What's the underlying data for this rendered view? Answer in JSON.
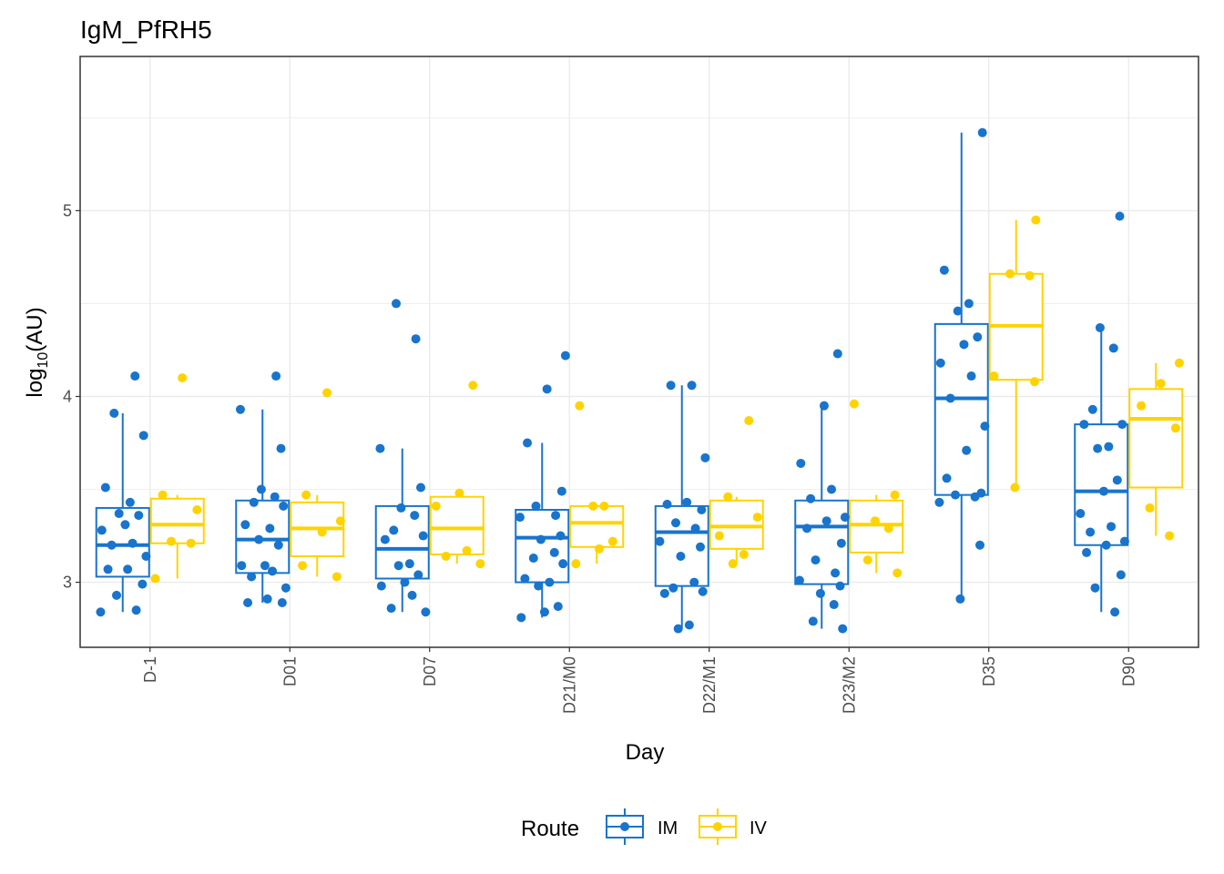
{
  "chart_data": {
    "type": "box",
    "title": "IgM_PfRH5",
    "xlabel": "Day",
    "ylabel": "log10(AU)",
    "ylabel_base": "log",
    "ylabel_sub": "10",
    "ylabel_rest": "(AU)",
    "ylim": [
      2.65,
      5.83
    ],
    "yticks": [
      3,
      4,
      5
    ],
    "grid": true,
    "legend_position": "bottom",
    "legend_title": "Route",
    "categories": [
      "D-1",
      "D01",
      "D07",
      "D21/M0",
      "D22/M1",
      "D23/M2",
      "D35",
      "D90"
    ],
    "series": [
      {
        "name": "IM",
        "color": "#1874CD",
        "boxes": [
          {
            "min": 2.84,
            "q1": 3.03,
            "median": 3.2,
            "q3": 3.4,
            "max": 3.91
          },
          {
            "min": 2.89,
            "q1": 3.05,
            "median": 3.23,
            "q3": 3.44,
            "max": 3.93
          },
          {
            "min": 2.84,
            "q1": 3.02,
            "median": 3.18,
            "q3": 3.41,
            "max": 3.72
          },
          {
            "min": 2.81,
            "q1": 3.0,
            "median": 3.24,
            "q3": 3.39,
            "max": 3.75
          },
          {
            "min": 2.75,
            "q1": 2.98,
            "median": 3.27,
            "q3": 3.41,
            "max": 4.06
          },
          {
            "min": 2.75,
            "q1": 2.99,
            "median": 3.3,
            "q3": 3.44,
            "max": 3.95
          },
          {
            "min": 2.91,
            "q1": 3.47,
            "median": 3.99,
            "q3": 4.39,
            "max": 5.42
          },
          {
            "min": 2.84,
            "q1": 3.2,
            "median": 3.49,
            "q3": 3.85,
            "max": 4.37
          }
        ],
        "points": [
          [
            2.84,
            2.85,
            2.93,
            2.99,
            3.07,
            3.07,
            3.14,
            3.2,
            3.21,
            3.28,
            3.31,
            3.36,
            3.37,
            3.43,
            3.51,
            3.79,
            3.91,
            4.11
          ],
          [
            2.89,
            2.89,
            2.91,
            2.97,
            3.03,
            3.06,
            3.09,
            3.09,
            3.2,
            3.23,
            3.29,
            3.31,
            3.41,
            3.43,
            3.46,
            3.5,
            3.72,
            3.93,
            4.11
          ],
          [
            2.84,
            2.86,
            2.93,
            2.98,
            3.0,
            3.04,
            3.09,
            3.1,
            3.23,
            3.25,
            3.28,
            3.36,
            3.4,
            3.51,
            3.72,
            4.31,
            4.5
          ],
          [
            2.81,
            2.84,
            2.87,
            2.98,
            3.0,
            3.02,
            3.1,
            3.13,
            3.16,
            3.23,
            3.25,
            3.35,
            3.36,
            3.41,
            3.49,
            3.75,
            4.04,
            4.22
          ],
          [
            2.75,
            2.77,
            2.94,
            2.95,
            2.97,
            3.0,
            3.14,
            3.19,
            3.22,
            3.29,
            3.32,
            3.39,
            3.42,
            3.43,
            3.67,
            4.06,
            4.06
          ],
          [
            2.75,
            2.79,
            2.88,
            2.94,
            2.98,
            3.01,
            3.05,
            3.12,
            3.21,
            3.29,
            3.33,
            3.35,
            3.45,
            3.5,
            3.64,
            3.95,
            4.23
          ],
          [
            2.91,
            3.2,
            3.43,
            3.46,
            3.47,
            3.48,
            3.56,
            3.71,
            3.84,
            3.99,
            4.11,
            4.18,
            4.28,
            4.32,
            4.46,
            4.5,
            4.68,
            5.42
          ],
          [
            2.84,
            2.97,
            3.04,
            3.16,
            3.2,
            3.22,
            3.27,
            3.3,
            3.37,
            3.49,
            3.55,
            3.72,
            3.73,
            3.85,
            3.85,
            3.93,
            4.26,
            4.37,
            4.97
          ]
        ]
      },
      {
        "name": "IV",
        "color": "#FFD300",
        "boxes": [
          {
            "min": 3.02,
            "q1": 3.21,
            "median": 3.31,
            "q3": 3.45,
            "max": 3.47
          },
          {
            "min": 3.03,
            "q1": 3.14,
            "median": 3.29,
            "q3": 3.43,
            "max": 3.47
          },
          {
            "min": 3.1,
            "q1": 3.15,
            "median": 3.29,
            "q3": 3.46,
            "max": 3.48
          },
          {
            "min": 3.1,
            "q1": 3.19,
            "median": 3.32,
            "q3": 3.41,
            "max": 3.41
          },
          {
            "min": 3.1,
            "q1": 3.18,
            "median": 3.3,
            "q3": 3.44,
            "max": 3.46
          },
          {
            "min": 3.05,
            "q1": 3.16,
            "median": 3.31,
            "q3": 3.44,
            "max": 3.47
          },
          {
            "min": 3.51,
            "q1": 4.09,
            "median": 4.38,
            "q3": 4.66,
            "max": 4.95
          },
          {
            "min": 3.25,
            "q1": 3.51,
            "median": 3.88,
            "q3": 4.04,
            "max": 4.18
          }
        ],
        "points": [
          [
            3.02,
            3.21,
            3.22,
            3.39,
            3.47,
            4.1
          ],
          [
            3.03,
            3.09,
            3.27,
            3.33,
            3.47,
            4.02
          ],
          [
            3.1,
            3.14,
            3.17,
            3.41,
            3.48,
            4.06
          ],
          [
            3.1,
            3.18,
            3.22,
            3.41,
            3.41,
            3.95
          ],
          [
            3.1,
            3.15,
            3.25,
            3.35,
            3.46,
            3.87
          ],
          [
            3.05,
            3.12,
            3.29,
            3.33,
            3.47,
            3.96
          ],
          [
            3.51,
            4.08,
            4.11,
            4.65,
            4.66,
            4.95
          ],
          [
            3.25,
            3.4,
            3.83,
            3.95,
            4.07,
            4.18
          ]
        ]
      }
    ]
  }
}
